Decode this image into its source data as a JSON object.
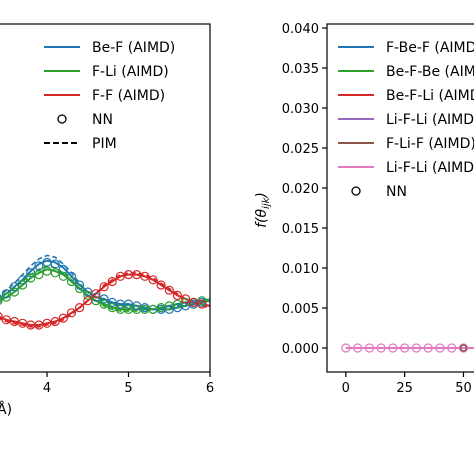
{
  "chart_data": [
    {
      "type": "line",
      "title": "",
      "xlabel": "Å)",
      "ylabel": "",
      "xlim": [
        3.3,
        6.0
      ],
      "x_ticks": [
        4,
        5,
        6
      ],
      "x_tick_labels": [
        "4",
        "5",
        "6"
      ],
      "grid": false,
      "legend_position": "top-right",
      "legend": [
        {
          "label": "Be-F (AIMD)",
          "color": "#1f77b4",
          "style": "solid"
        },
        {
          "label": "F-Li (AIMD)",
          "color": "#2ca02c",
          "style": "solid"
        },
        {
          "label": "F-F (AIMD)",
          "color": "#d62728",
          "style": "solid"
        },
        {
          "label": "NN",
          "color": "#000000",
          "style": "circle"
        },
        {
          "label": "PIM",
          "color": "#000000",
          "style": "dashed"
        }
      ],
      "x": [
        3.3,
        3.4,
        3.5,
        3.6,
        3.7,
        3.8,
        3.9,
        4.0,
        4.1,
        4.2,
        4.3,
        4.4,
        4.5,
        4.6,
        4.7,
        4.8,
        4.9,
        5.0,
        5.1,
        5.2,
        5.3,
        5.4,
        5.5,
        5.6,
        5.7,
        5.8,
        5.9,
        6.0
      ],
      "series": [
        {
          "name": "Be-F (AIMD)",
          "color": "#1f77b4",
          "values": [
            1.0,
            1.02,
            1.05,
            1.09,
            1.13,
            1.18,
            1.22,
            1.24,
            1.23,
            1.2,
            1.15,
            1.1,
            1.06,
            1.03,
            1.02,
            1.0,
            0.99,
            0.99,
            0.98,
            0.97,
            0.96,
            0.96,
            0.96,
            0.97,
            0.98,
            0.99,
            1.0,
            1.01
          ]
        },
        {
          "name": "F-Li (AIMD)",
          "color": "#2ca02c",
          "values": [
            1.0,
            1.01,
            1.03,
            1.06,
            1.1,
            1.14,
            1.17,
            1.19,
            1.18,
            1.16,
            1.12,
            1.08,
            1.04,
            1.01,
            0.99,
            0.97,
            0.96,
            0.96,
            0.96,
            0.96,
            0.96,
            0.97,
            0.98,
            0.99,
            1.0,
            1.0,
            1.01,
            1.01
          ]
        },
        {
          "name": "F-F (AIMD)",
          "color": "#d62728",
          "values": [
            0.94,
            0.92,
            0.9,
            0.89,
            0.88,
            0.87,
            0.87,
            0.88,
            0.89,
            0.91,
            0.94,
            0.97,
            1.01,
            1.05,
            1.09,
            1.12,
            1.15,
            1.16,
            1.16,
            1.15,
            1.13,
            1.1,
            1.07,
            1.04,
            1.02,
            1.0,
            0.99,
            0.98
          ]
        }
      ],
      "nn_series": [
        {
          "name": "Be-F NN",
          "color": "#1f77b4",
          "x": [
            3.3,
            3.4,
            3.5,
            3.6,
            3.7,
            3.8,
            3.9,
            4.0,
            4.1,
            4.2,
            4.3,
            4.4,
            4.5,
            4.6,
            4.7,
            4.8,
            4.9,
            5.0,
            5.1,
            5.2,
            5.3,
            5.4,
            5.5,
            5.6,
            5.7,
            5.8,
            5.9
          ],
          "y": [
            1.0,
            1.02,
            1.05,
            1.09,
            1.13,
            1.17,
            1.21,
            1.23,
            1.22,
            1.19,
            1.15,
            1.1,
            1.06,
            1.03,
            1.02,
            1.0,
            0.99,
            0.99,
            0.98,
            0.97,
            0.96,
            0.96,
            0.96,
            0.97,
            0.98,
            0.99,
            1.0
          ]
        },
        {
          "name": "F-Li NN",
          "color": "#2ca02c",
          "x": [
            3.3,
            3.4,
            3.5,
            3.6,
            3.7,
            3.8,
            3.9,
            4.0,
            4.1,
            4.2,
            4.3,
            4.4,
            4.5,
            4.6,
            4.7,
            4.8,
            4.9,
            5.0,
            5.1,
            5.2,
            5.3,
            5.4,
            5.5,
            5.6,
            5.7,
            5.8,
            5.9
          ],
          "y": [
            1.0,
            1.01,
            1.03,
            1.06,
            1.1,
            1.14,
            1.16,
            1.18,
            1.17,
            1.15,
            1.12,
            1.08,
            1.04,
            1.01,
            0.99,
            0.97,
            0.96,
            0.96,
            0.96,
            0.96,
            0.96,
            0.97,
            0.98,
            0.99,
            1.0,
            1.0,
            1.01
          ]
        },
        {
          "name": "F-F NN",
          "color": "#d62728",
          "x": [
            3.3,
            3.4,
            3.5,
            3.6,
            3.7,
            3.8,
            3.9,
            4.0,
            4.1,
            4.2,
            4.3,
            4.4,
            4.5,
            4.6,
            4.7,
            4.8,
            4.9,
            5.0,
            5.1,
            5.2,
            5.3,
            5.4,
            5.5,
            5.6,
            5.7,
            5.8,
            5.9
          ],
          "y": [
            0.94,
            0.92,
            0.9,
            0.89,
            0.88,
            0.87,
            0.87,
            0.88,
            0.89,
            0.91,
            0.94,
            0.97,
            1.01,
            1.05,
            1.09,
            1.12,
            1.15,
            1.16,
            1.16,
            1.15,
            1.13,
            1.1,
            1.07,
            1.04,
            1.02,
            1.0,
            0.99
          ]
        }
      ],
      "pim_series": [
        {
          "name": "Be-F PIM",
          "color": "#1f77b4",
          "values": [
            1.0,
            1.03,
            1.07,
            1.11,
            1.16,
            1.21,
            1.25,
            1.27,
            1.26,
            1.22,
            1.17,
            1.11,
            1.06,
            1.03,
            1.01,
            0.99,
            0.98,
            0.98,
            0.97,
            0.96,
            0.96,
            0.96,
            0.97,
            0.98,
            0.99,
            1.0,
            1.01,
            1.02
          ]
        },
        {
          "name": "F-Li PIM",
          "color": "#2ca02c",
          "values": [
            1.0,
            1.02,
            1.05,
            1.08,
            1.12,
            1.16,
            1.19,
            1.21,
            1.2,
            1.17,
            1.13,
            1.08,
            1.04,
            1.01,
            0.98,
            0.96,
            0.95,
            0.95,
            0.95,
            0.96,
            0.96,
            0.97,
            0.98,
            0.99,
            1.0,
            1.01,
            1.01,
            1.02
          ]
        },
        {
          "name": "F-F PIM",
          "color": "#d62728",
          "values": [
            0.93,
            0.91,
            0.89,
            0.88,
            0.87,
            0.86,
            0.86,
            0.87,
            0.88,
            0.9,
            0.93,
            0.97,
            1.01,
            1.05,
            1.1,
            1.13,
            1.16,
            1.17,
            1.17,
            1.16,
            1.14,
            1.11,
            1.08,
            1.05,
            1.02,
            1.0,
            0.98,
            0.97
          ]
        }
      ],
      "ylim": [
        0.6,
        2.6
      ]
    },
    {
      "type": "line",
      "title": "",
      "xlabel": "",
      "ylabel": "f(θ_ijk)",
      "xlim": [
        -8,
        60
      ],
      "ylim": [
        -0.003,
        0.0405
      ],
      "x_ticks": [
        0,
        25,
        50
      ],
      "x_tick_labels": [
        "0",
        "25",
        "50"
      ],
      "y_ticks": [
        0.0,
        0.005,
        0.01,
        0.015,
        0.02,
        0.025,
        0.03,
        0.035,
        0.04
      ],
      "y_tick_labels": [
        "0.000",
        "0.005",
        "0.010",
        "0.015",
        "0.020",
        "0.025",
        "0.030",
        "0.035",
        "0.040"
      ],
      "grid": false,
      "legend_position": "top-right",
      "legend": [
        {
          "label": "F-Be-F (AIMD)",
          "color": "#1f77b4",
          "style": "solid"
        },
        {
          "label": "Be-F-Be (AIMD)",
          "color": "#2ca02c",
          "style": "solid"
        },
        {
          "label": "Be-F-Li (AIMD)",
          "color": "#d62728",
          "style": "solid"
        },
        {
          "label": "Li-F-Li (AIMD)",
          "color": "#9467bd",
          "style": "solid"
        },
        {
          "label": "F-Li-F (AIMD)",
          "color": "#8c564b",
          "style": "solid"
        },
        {
          "label": "Li-F-Li (AIMD)",
          "color": "#e377c2",
          "style": "solid"
        },
        {
          "label": "NN",
          "color": "#000000",
          "style": "circle"
        }
      ],
      "series": [
        {
          "name": "Li-F-Li (AIMD)",
          "color": "#e377c2",
          "x": [
            0,
            5,
            10,
            15,
            20,
            25,
            30,
            35,
            40,
            45,
            50,
            55
          ],
          "y": [
            0.0,
            0.0,
            0.0,
            0.0,
            0.0,
            0.0,
            0.0,
            0.0,
            0.0,
            0.0,
            0.0,
            0.0
          ]
        }
      ],
      "nn_points": {
        "x": [
          0,
          5,
          10,
          15,
          20,
          25,
          30,
          35,
          40,
          45,
          50
        ],
        "y": [
          0.0,
          0.0,
          0.0,
          0.0,
          0.0,
          0.0,
          0.0,
          0.0,
          0.0,
          0.0,
          0.0
        ],
        "color": "#e377c2"
      }
    }
  ]
}
